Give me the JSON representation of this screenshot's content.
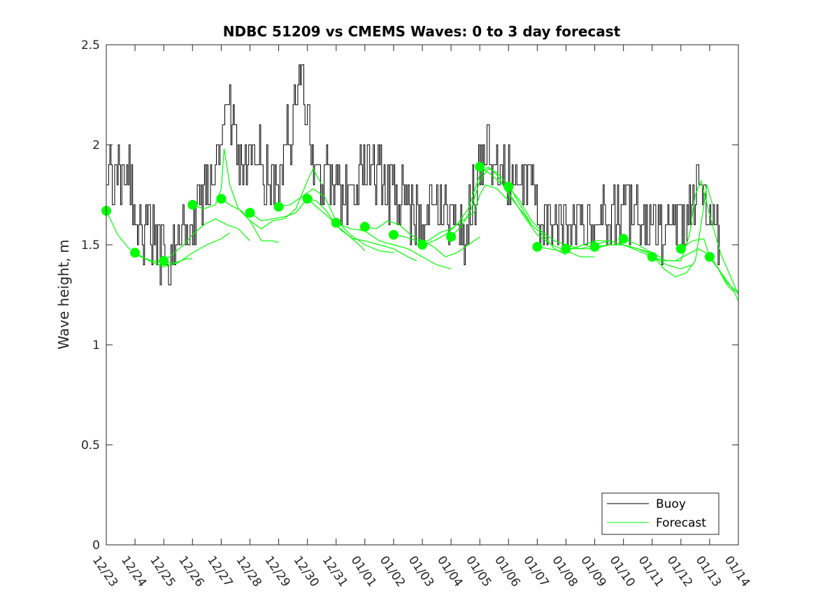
{
  "chart_data": {
    "type": "line",
    "title": "NDBC 51209 vs CMEMS Waves: 0 to 3 day forecast",
    "xlabel": "",
    "ylabel": "Wave height, m",
    "ylim": [
      0,
      2.5
    ],
    "xlim": [
      0,
      22
    ],
    "yticks": [
      0,
      0.5,
      1,
      1.5,
      2,
      2.5
    ],
    "ytick_labels": [
      "0",
      "0.5",
      "1",
      "1.5",
      "2",
      "2.5"
    ],
    "xtick_labels": [
      "12/23",
      "12/24",
      "12/25",
      "12/26",
      "12/27",
      "12/28",
      "12/29",
      "12/30",
      "12/31",
      "01/01",
      "01/02",
      "01/03",
      "01/04",
      "01/05",
      "01/06",
      "01/07",
      "01/08",
      "01/09",
      "01/10",
      "01/11",
      "01/12",
      "01/13",
      "01/14"
    ],
    "legend": {
      "position": "bottom-right",
      "entries": [
        {
          "name": "Buoy",
          "color": "#000000"
        },
        {
          "name": "Forecast",
          "color": "#00ff00"
        }
      ]
    },
    "colors": {
      "buoy": "#000000",
      "forecast": "#00ff00",
      "axis": "#262626"
    },
    "buoy_keypoints": [
      [
        0,
        1.8
      ],
      [
        0.15,
        1.9
      ],
      [
        0.3,
        1.75
      ],
      [
        0.5,
        1.85
      ],
      [
        0.75,
        1.9
      ],
      [
        0.9,
        1.7
      ],
      [
        1.1,
        1.6
      ],
      [
        1.3,
        1.55
      ],
      [
        1.5,
        1.6
      ],
      [
        1.7,
        1.5
      ],
      [
        1.9,
        1.45
      ],
      [
        2.1,
        1.45
      ],
      [
        2.3,
        1.45
      ],
      [
        2.5,
        1.5
      ],
      [
        2.7,
        1.55
      ],
      [
        2.9,
        1.6
      ],
      [
        3.1,
        1.65
      ],
      [
        3.3,
        1.75
      ],
      [
        3.5,
        1.75
      ],
      [
        3.7,
        1.8
      ],
      [
        3.9,
        1.85
      ],
      [
        4.0,
        2.0
      ],
      [
        4.1,
        2.15
      ],
      [
        4.2,
        2.25
      ],
      [
        4.35,
        2.1
      ],
      [
        4.5,
        1.95
      ],
      [
        4.7,
        1.85
      ],
      [
        4.9,
        1.9
      ],
      [
        5.1,
        2.0
      ],
      [
        5.3,
        1.95
      ],
      [
        5.5,
        1.85
      ],
      [
        5.7,
        1.8
      ],
      [
        5.85,
        1.75
      ],
      [
        6.0,
        1.8
      ],
      [
        6.2,
        1.95
      ],
      [
        6.35,
        2.05
      ],
      [
        6.5,
        2.1
      ],
      [
        6.6,
        2.25
      ],
      [
        6.7,
        2.35
      ],
      [
        6.85,
        2.35
      ],
      [
        7.0,
        2.2
      ],
      [
        7.1,
        2.0
      ],
      [
        7.2,
        1.85
      ],
      [
        7.4,
        1.8
      ],
      [
        7.6,
        1.9
      ],
      [
        7.8,
        1.85
      ],
      [
        8.0,
        1.8
      ],
      [
        8.2,
        1.75
      ],
      [
        8.4,
        1.75
      ],
      [
        8.6,
        1.8
      ],
      [
        8.8,
        1.85
      ],
      [
        9.0,
        1.85
      ],
      [
        9.2,
        1.9
      ],
      [
        9.4,
        1.85
      ],
      [
        9.6,
        1.8
      ],
      [
        9.8,
        1.75
      ],
      [
        10.0,
        1.75
      ],
      [
        10.3,
        1.75
      ],
      [
        10.5,
        1.7
      ],
      [
        10.7,
        1.65
      ],
      [
        11.0,
        1.6
      ],
      [
        11.3,
        1.65
      ],
      [
        11.6,
        1.7
      ],
      [
        11.8,
        1.65
      ],
      [
        12.0,
        1.6
      ],
      [
        12.2,
        1.6
      ],
      [
        12.4,
        1.55
      ],
      [
        12.6,
        1.65
      ],
      [
        12.8,
        1.75
      ],
      [
        13.0,
        1.85
      ],
      [
        13.2,
        2.0
      ],
      [
        13.4,
        1.95
      ],
      [
        13.6,
        1.9
      ],
      [
        13.8,
        1.85
      ],
      [
        14.0,
        1.85
      ],
      [
        14.2,
        1.8
      ],
      [
        14.4,
        1.75
      ],
      [
        14.6,
        1.85
      ],
      [
        14.8,
        1.8
      ],
      [
        15.0,
        1.65
      ],
      [
        15.2,
        1.6
      ],
      [
        15.4,
        1.6
      ],
      [
        15.7,
        1.6
      ],
      [
        16.0,
        1.6
      ],
      [
        16.3,
        1.65
      ],
      [
        16.6,
        1.6
      ],
      [
        16.9,
        1.65
      ],
      [
        17.2,
        1.65
      ],
      [
        17.5,
        1.6
      ],
      [
        17.8,
        1.65
      ],
      [
        18.1,
        1.7
      ],
      [
        18.4,
        1.65
      ],
      [
        18.7,
        1.6
      ],
      [
        19.0,
        1.6
      ],
      [
        19.3,
        1.55
      ],
      [
        19.6,
        1.6
      ],
      [
        19.9,
        1.65
      ],
      [
        20.2,
        1.6
      ],
      [
        20.4,
        1.75
      ],
      [
        20.6,
        1.8
      ],
      [
        20.8,
        1.7
      ],
      [
        21.0,
        1.65
      ],
      [
        21.2,
        1.6
      ],
      [
        21.35,
        1.55
      ]
    ],
    "forecast_runs": [
      [
        [
          0,
          1.67
        ],
        [
          0.4,
          1.55
        ],
        [
          0.8,
          1.48
        ],
        [
          1.2,
          1.44
        ],
        [
          1.6,
          1.42
        ],
        [
          2.0,
          1.41
        ],
        [
          2.4,
          1.41
        ],
        [
          2.8,
          1.43
        ],
        [
          3.0,
          1.43
        ]
      ],
      [
        [
          1,
          1.46
        ],
        [
          1.5,
          1.42
        ],
        [
          2.0,
          1.39
        ],
        [
          2.5,
          1.41
        ],
        [
          3.0,
          1.46
        ],
        [
          3.5,
          1.5
        ],
        [
          4.0,
          1.53
        ],
        [
          4.3,
          1.56
        ]
      ],
      [
        [
          2,
          1.42
        ],
        [
          2.3,
          1.45
        ],
        [
          2.7,
          1.5
        ],
        [
          3.0,
          1.55
        ],
        [
          3.4,
          1.6
        ],
        [
          3.8,
          1.63
        ],
        [
          4.2,
          1.6
        ],
        [
          4.6,
          1.58
        ],
        [
          5.0,
          1.52
        ]
      ],
      [
        [
          3,
          1.7
        ],
        [
          3.4,
          1.68
        ],
        [
          3.8,
          1.7
        ],
        [
          4.0,
          1.78
        ],
        [
          4.1,
          1.98
        ],
        [
          4.3,
          1.8
        ],
        [
          4.6,
          1.68
        ],
        [
          5.0,
          1.62
        ],
        [
          5.4,
          1.52
        ],
        [
          5.8,
          1.52
        ],
        [
          6.0,
          1.51
        ]
      ],
      [
        [
          4,
          1.73
        ],
        [
          4.3,
          1.7
        ],
        [
          4.7,
          1.67
        ],
        [
          5.0,
          1.62
        ],
        [
          5.4,
          1.58
        ],
        [
          5.8,
          1.62
        ],
        [
          6.2,
          1.63
        ],
        [
          6.6,
          1.68
        ],
        [
          7.0,
          1.82
        ],
        [
          7.2,
          1.88
        ],
        [
          7.5,
          1.8
        ]
      ],
      [
        [
          5,
          1.66
        ],
        [
          5.4,
          1.62
        ],
        [
          5.8,
          1.63
        ],
        [
          6.2,
          1.64
        ],
        [
          6.6,
          1.66
        ],
        [
          7.0,
          1.73
        ],
        [
          7.3,
          1.72
        ],
        [
          7.6,
          1.68
        ],
        [
          8.0,
          1.6
        ],
        [
          8.4,
          1.55
        ],
        [
          8.8,
          1.5
        ],
        [
          9.0,
          1.47
        ]
      ],
      [
        [
          6,
          1.69
        ],
        [
          6.4,
          1.7
        ],
        [
          6.8,
          1.74
        ],
        [
          7.2,
          1.78
        ],
        [
          7.6,
          1.74
        ],
        [
          8.0,
          1.62
        ],
        [
          8.5,
          1.55
        ],
        [
          9.0,
          1.5
        ],
        [
          9.5,
          1.47
        ],
        [
          10.0,
          1.46
        ]
      ],
      [
        [
          7,
          1.73
        ],
        [
          7.4,
          1.68
        ],
        [
          7.8,
          1.63
        ],
        [
          8.2,
          1.57
        ],
        [
          8.6,
          1.53
        ],
        [
          9.0,
          1.52
        ],
        [
          9.5,
          1.5
        ],
        [
          10.0,
          1.48
        ],
        [
          10.5,
          1.44
        ],
        [
          10.8,
          1.42
        ]
      ],
      [
        [
          8,
          1.61
        ],
        [
          8.5,
          1.58
        ],
        [
          9.0,
          1.57
        ],
        [
          9.5,
          1.52
        ],
        [
          10.0,
          1.5
        ],
        [
          10.5,
          1.48
        ],
        [
          11.0,
          1.44
        ],
        [
          11.5,
          1.4
        ],
        [
          12.0,
          1.38
        ]
      ],
      [
        [
          9,
          1.59
        ],
        [
          9.4,
          1.58
        ],
        [
          9.8,
          1.62
        ],
        [
          10.2,
          1.6
        ],
        [
          10.6,
          1.55
        ],
        [
          11.0,
          1.52
        ],
        [
          11.4,
          1.49
        ],
        [
          11.8,
          1.44
        ],
        [
          12.2,
          1.46
        ],
        [
          12.6,
          1.5
        ],
        [
          13.0,
          1.54
        ]
      ],
      [
        [
          10,
          1.55
        ],
        [
          10.4,
          1.54
        ],
        [
          10.8,
          1.52
        ],
        [
          11.2,
          1.52
        ],
        [
          11.6,
          1.56
        ],
        [
          12.0,
          1.58
        ],
        [
          12.4,
          1.62
        ],
        [
          12.8,
          1.66
        ],
        [
          13.0,
          1.75
        ],
        [
          13.2,
          1.8
        ],
        [
          13.6,
          1.78
        ],
        [
          14.0,
          1.72
        ]
      ],
      [
        [
          11,
          1.5
        ],
        [
          11.4,
          1.52
        ],
        [
          11.8,
          1.55
        ],
        [
          12.2,
          1.6
        ],
        [
          12.6,
          1.68
        ],
        [
          13.0,
          1.85
        ],
        [
          13.3,
          1.89
        ],
        [
          13.6,
          1.85
        ],
        [
          14.0,
          1.75
        ],
        [
          14.5,
          1.66
        ],
        [
          14.8,
          1.6
        ]
      ],
      [
        [
          12,
          1.54
        ],
        [
          12.4,
          1.6
        ],
        [
          12.7,
          1.68
        ],
        [
          13.0,
          1.82
        ],
        [
          13.3,
          1.88
        ],
        [
          13.6,
          1.86
        ],
        [
          14.0,
          1.8
        ],
        [
          14.4,
          1.7
        ],
        [
          14.8,
          1.6
        ],
        [
          15.2,
          1.55
        ],
        [
          15.6,
          1.48
        ],
        [
          16.0,
          1.45
        ]
      ],
      [
        [
          13,
          1.89
        ],
        [
          13.4,
          1.85
        ],
        [
          13.8,
          1.8
        ],
        [
          14.2,
          1.72
        ],
        [
          14.6,
          1.63
        ],
        [
          15.0,
          1.55
        ],
        [
          15.5,
          1.5
        ],
        [
          16.0,
          1.47
        ],
        [
          16.5,
          1.44
        ],
        [
          17.0,
          1.44
        ]
      ],
      [
        [
          14,
          1.79
        ],
        [
          14.4,
          1.72
        ],
        [
          14.8,
          1.62
        ],
        [
          15.2,
          1.56
        ],
        [
          15.6,
          1.52
        ],
        [
          16.0,
          1.5
        ],
        [
          16.5,
          1.48
        ],
        [
          17.0,
          1.48
        ],
        [
          17.5,
          1.5
        ],
        [
          18.0,
          1.5
        ]
      ],
      [
        [
          15,
          1.49
        ],
        [
          15.4,
          1.48
        ],
        [
          15.8,
          1.47
        ],
        [
          16.2,
          1.48
        ],
        [
          16.6,
          1.5
        ],
        [
          17.0,
          1.52
        ],
        [
          17.5,
          1.52
        ],
        [
          18.0,
          1.5
        ],
        [
          18.5,
          1.48
        ],
        [
          19.0,
          1.46
        ]
      ],
      [
        [
          16,
          1.48
        ],
        [
          16.5,
          1.48
        ],
        [
          17.0,
          1.5
        ],
        [
          17.5,
          1.52
        ],
        [
          18.0,
          1.5
        ],
        [
          18.5,
          1.47
        ],
        [
          19.0,
          1.44
        ],
        [
          19.5,
          1.4
        ],
        [
          20.0,
          1.38
        ],
        [
          20.4,
          1.4
        ]
      ],
      [
        [
          17,
          1.49
        ],
        [
          17.5,
          1.5
        ],
        [
          18.0,
          1.5
        ],
        [
          18.5,
          1.48
        ],
        [
          19.0,
          1.45
        ],
        [
          19.4,
          1.38
        ],
        [
          19.8,
          1.34
        ],
        [
          20.2,
          1.36
        ],
        [
          20.5,
          1.42
        ],
        [
          20.7,
          1.6
        ],
        [
          20.9,
          1.8
        ],
        [
          21.1,
          1.7
        ]
      ],
      [
        [
          18,
          1.53
        ],
        [
          18.5,
          1.5
        ],
        [
          19.0,
          1.46
        ],
        [
          19.5,
          1.42
        ],
        [
          20.0,
          1.42
        ],
        [
          20.3,
          1.55
        ],
        [
          20.5,
          1.75
        ],
        [
          20.7,
          1.82
        ],
        [
          21.0,
          1.65
        ],
        [
          21.4,
          1.45
        ],
        [
          21.7,
          1.35
        ],
        [
          22.0,
          1.25
        ]
      ],
      [
        [
          19,
          1.44
        ],
        [
          19.4,
          1.42
        ],
        [
          19.8,
          1.42
        ],
        [
          20.2,
          1.45
        ],
        [
          20.6,
          1.48
        ],
        [
          21.0,
          1.45
        ],
        [
          21.4,
          1.36
        ],
        [
          21.8,
          1.28
        ],
        [
          22.0,
          1.22
        ]
      ],
      [
        [
          20,
          1.48
        ],
        [
          20.4,
          1.52
        ],
        [
          20.8,
          1.53
        ],
        [
          21.0,
          1.44
        ],
        [
          21.3,
          1.38
        ],
        [
          21.6,
          1.31
        ],
        [
          22.0,
          1.26
        ]
      ],
      [
        [
          21,
          1.44
        ],
        [
          21.3,
          1.38
        ],
        [
          21.6,
          1.3
        ],
        [
          21.8,
          1.27
        ],
        [
          22.0,
          1.27
        ]
      ]
    ],
    "forecast_markers": [
      {
        "x": 0,
        "y": 1.67
      },
      {
        "x": 1,
        "y": 1.46
      },
      {
        "x": 2,
        "y": 1.42
      },
      {
        "x": 3,
        "y": 1.7
      },
      {
        "x": 4,
        "y": 1.73
      },
      {
        "x": 5,
        "y": 1.66
      },
      {
        "x": 6,
        "y": 1.69
      },
      {
        "x": 7,
        "y": 1.73
      },
      {
        "x": 8,
        "y": 1.61
      },
      {
        "x": 9,
        "y": 1.59
      },
      {
        "x": 10,
        "y": 1.55
      },
      {
        "x": 11,
        "y": 1.5
      },
      {
        "x": 12,
        "y": 1.54
      },
      {
        "x": 13,
        "y": 1.89
      },
      {
        "x": 14,
        "y": 1.79
      },
      {
        "x": 15,
        "y": 1.49
      },
      {
        "x": 16,
        "y": 1.48
      },
      {
        "x": 17,
        "y": 1.49
      },
      {
        "x": 18,
        "y": 1.53
      },
      {
        "x": 19,
        "y": 1.44
      },
      {
        "x": 20,
        "y": 1.48
      },
      {
        "x": 21,
        "y": 1.44
      }
    ]
  }
}
